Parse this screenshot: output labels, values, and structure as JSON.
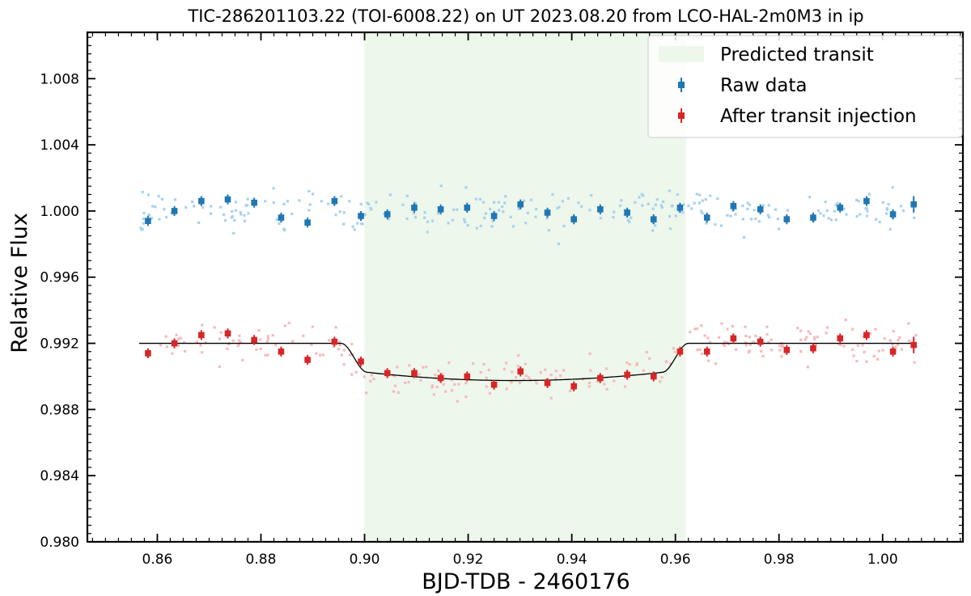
{
  "chart_data": {
    "type": "scatter",
    "title": "TIC-286201103.22 (TOI-6008.22) on UT 2023.08.20 from LCO-HAL-2m0M3 in ip",
    "xlabel": "BJD-TDB - 2460176",
    "ylabel": "Relative Flux",
    "xlim": [
      0.8465,
      1.0155
    ],
    "ylim": [
      0.98,
      1.0108
    ],
    "xticks": [
      0.86,
      0.88,
      0.9,
      0.92,
      0.94,
      0.96,
      0.98,
      1.0
    ],
    "xtick_labels": [
      "0.86",
      "0.88",
      "0.90",
      "0.92",
      "0.94",
      "0.96",
      "0.98",
      "1.00"
    ],
    "yticks": [
      0.98,
      0.984,
      0.988,
      0.992,
      0.996,
      1.0,
      1.004,
      1.008
    ],
    "ytick_labels": [
      "0.980",
      "0.984",
      "0.988",
      "0.992",
      "0.996",
      "1.000",
      "1.004",
      "1.008"
    ],
    "grid": false,
    "legend_position": "top-right",
    "predicted_transit": {
      "label": "Predicted transit",
      "start": 0.9,
      "end": 0.962,
      "color": "#eef7ec"
    },
    "model": {
      "baseline": 0.992,
      "depth": 0.00225,
      "ingress_start": 0.8955,
      "ingress_end": 0.9005,
      "egress_start": 0.9575,
      "egress_end": 0.9625,
      "color": "#000000"
    },
    "series": [
      {
        "name": "Raw data",
        "color": "#1f77b4",
        "raw_color": "#a9d2ec",
        "x": [
          0.8582,
          0.8633,
          0.8685,
          0.8736,
          0.8787,
          0.8839,
          0.889,
          0.8942,
          0.8993,
          0.9044,
          0.9096,
          0.9147,
          0.9198,
          0.925,
          0.9301,
          0.9353,
          0.9404,
          0.9455,
          0.9507,
          0.9558,
          0.9609,
          0.9661,
          0.9712,
          0.9764,
          0.9815,
          0.9866,
          0.9918,
          0.9969,
          1.002,
          1.006
        ],
        "y": [
          0.9994,
          1.0,
          1.0006,
          1.0007,
          1.0005,
          0.9996,
          0.9993,
          1.0006,
          0.9997,
          0.9998,
          1.0002,
          1.0001,
          1.0002,
          0.9997,
          1.0004,
          0.9999,
          0.9995,
          1.0001,
          0.9999,
          0.9995,
          1.0002,
          0.9996,
          1.0003,
          1.0001,
          0.9995,
          0.9996,
          1.0002,
          1.0006,
          0.9998,
          1.0004
        ],
        "yerr": [
          0.0003,
          0.0003,
          0.0003,
          0.0003,
          0.0003,
          0.0003,
          0.0003,
          0.0003,
          0.0003,
          0.0003,
          0.0003,
          0.0003,
          0.0003,
          0.0003,
          0.0003,
          0.0003,
          0.0003,
          0.0003,
          0.0003,
          0.0003,
          0.0003,
          0.0003,
          0.0003,
          0.0003,
          0.0003,
          0.0003,
          0.0003,
          0.0003,
          0.0003,
          0.0005
        ]
      },
      {
        "name": "After transit injection",
        "color": "#d62728",
        "raw_color": "#f4bcbc",
        "x": [
          0.8582,
          0.8633,
          0.8685,
          0.8736,
          0.8787,
          0.8839,
          0.889,
          0.8942,
          0.8993,
          0.9044,
          0.9096,
          0.9147,
          0.9198,
          0.925,
          0.9301,
          0.9353,
          0.9404,
          0.9455,
          0.9507,
          0.9558,
          0.9609,
          0.9661,
          0.9712,
          0.9764,
          0.9815,
          0.9866,
          0.9918,
          0.9969,
          1.002,
          1.006
        ],
        "y": [
          0.9914,
          0.992,
          0.9925,
          0.9926,
          0.9922,
          0.9915,
          0.991,
          0.9921,
          0.9909,
          0.9902,
          0.9902,
          0.9899,
          0.99,
          0.9895,
          0.9903,
          0.9896,
          0.9894,
          0.9899,
          0.9901,
          0.99,
          0.9915,
          0.9915,
          0.9923,
          0.9921,
          0.9916,
          0.9917,
          0.9923,
          0.9925,
          0.9915,
          0.9919
        ],
        "yerr": [
          0.0003,
          0.0003,
          0.0003,
          0.0003,
          0.0003,
          0.0003,
          0.0003,
          0.0003,
          0.0003,
          0.0003,
          0.0003,
          0.0003,
          0.0003,
          0.0003,
          0.0003,
          0.0003,
          0.0003,
          0.0003,
          0.0003,
          0.0003,
          0.0003,
          0.0003,
          0.0003,
          0.0003,
          0.0003,
          0.0003,
          0.0003,
          0.0003,
          0.0003,
          0.0005
        ]
      }
    ]
  }
}
